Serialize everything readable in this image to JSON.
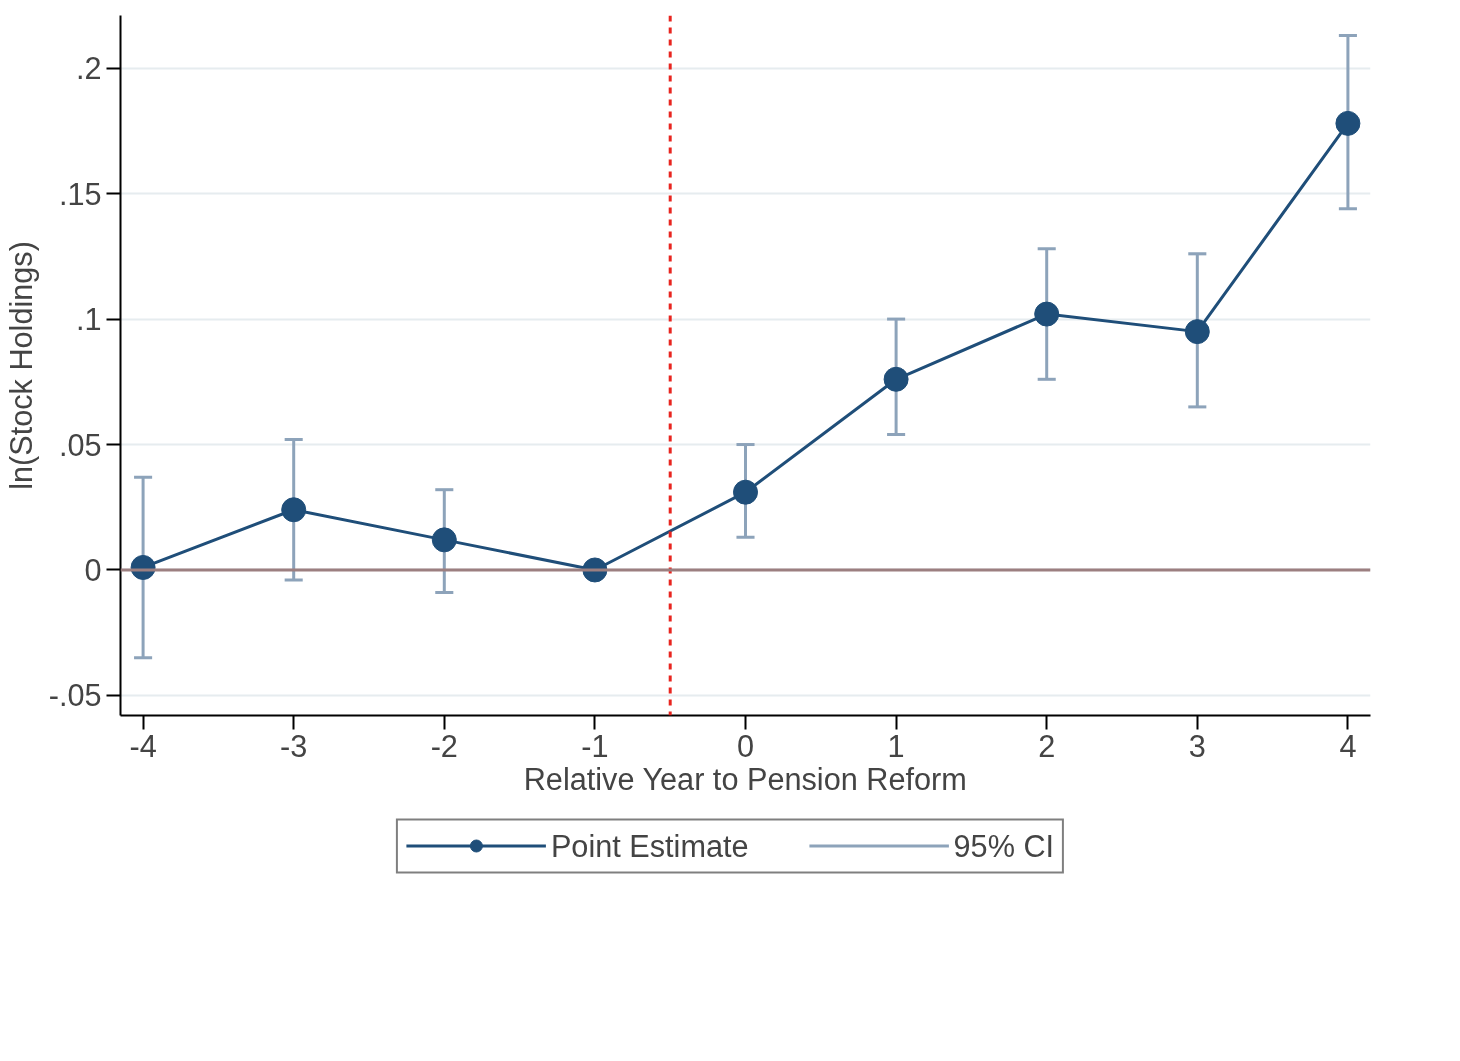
{
  "chart_data": {
    "type": "line",
    "xlabel": "Relative Year to Pension Reform",
    "ylabel": "ln(Stock Holdings)",
    "x": [
      -4,
      -3,
      -2,
      -1,
      0,
      1,
      2,
      3,
      4
    ],
    "series": [
      {
        "name": "Point Estimate",
        "color": "#1f4e79",
        "values": [
          0.001,
          0.024,
          0.012,
          0,
          0.031,
          0.076,
          0.102,
          0.095,
          0.178
        ],
        "errors": [
          [
            -0.035,
            0.037
          ],
          [
            -0.004,
            0.052
          ],
          [
            -0.009,
            0.032
          ],
          null,
          [
            0.013,
            0.05
          ],
          [
            0.054,
            0.1
          ],
          [
            0.076,
            0.128
          ],
          [
            0.065,
            0.126
          ],
          [
            0.144,
            0.213
          ]
        ]
      }
    ],
    "annotations": [
      "95% CI"
    ],
    "xlim": [
      -4.15,
      4.15
    ],
    "ylim": [
      -0.058,
      0.221
    ],
    "xticks": [
      -4,
      -3,
      -2,
      -1,
      0,
      1,
      2,
      3,
      4
    ],
    "yticks": [
      {
        "value": -0.05,
        "label": "-.05"
      },
      {
        "value": 0,
        "label": "0"
      },
      {
        "value": 0.05,
        "label": ".05"
      },
      {
        "value": 0.1,
        "label": ".1"
      },
      {
        "value": 0.15,
        "label": ".15"
      },
      {
        "value": 0.2,
        "label": ".2"
      }
    ],
    "ref_lines": [
      {
        "axis": "x",
        "value": -0.5,
        "color": "#e8251f",
        "line_style": "dashed"
      },
      {
        "axis": "y",
        "value": 0,
        "color": "#9c7f80",
        "line_style": "solid"
      }
    ],
    "grid": "y",
    "legend": "bottom",
    "marker": "circle",
    "line_style": "solid"
  }
}
